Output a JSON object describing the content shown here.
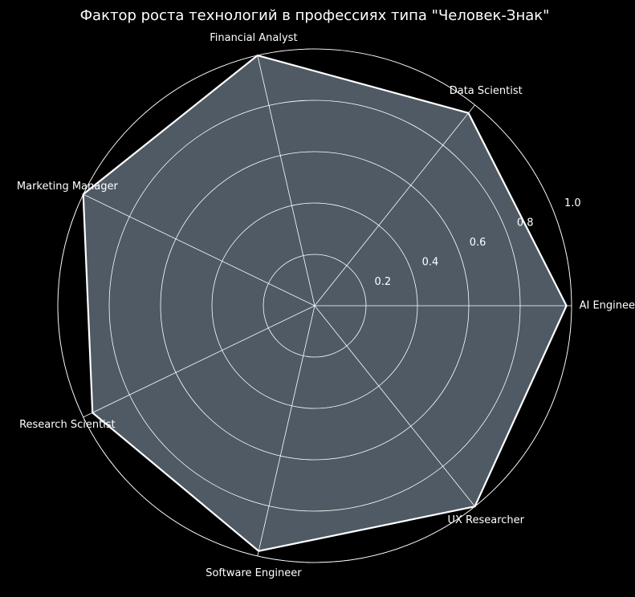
{
  "chart_data": {
    "type": "radar",
    "title": "Фактор роста технологий в профессиях типа \"Человек-Знак\"",
    "categories": [
      "AI Engineer",
      "Data Scientist",
      "Financial Analyst",
      "Marketing Manager",
      "Research Scientist",
      "Software Engineer",
      "UX Researcher"
    ],
    "values": [
      0.98,
      0.96,
      1.0,
      1.0,
      0.96,
      0.98,
      1.0
    ],
    "color": "#4f5a65",
    "edge_color": "#ffffff",
    "ylim": [
      0,
      1.0
    ],
    "yticks": [
      0.2,
      0.4,
      0.6,
      0.8,
      {
        "value": 1.0,
        "label": "1.0"
      }
    ],
    "grid": true
  }
}
